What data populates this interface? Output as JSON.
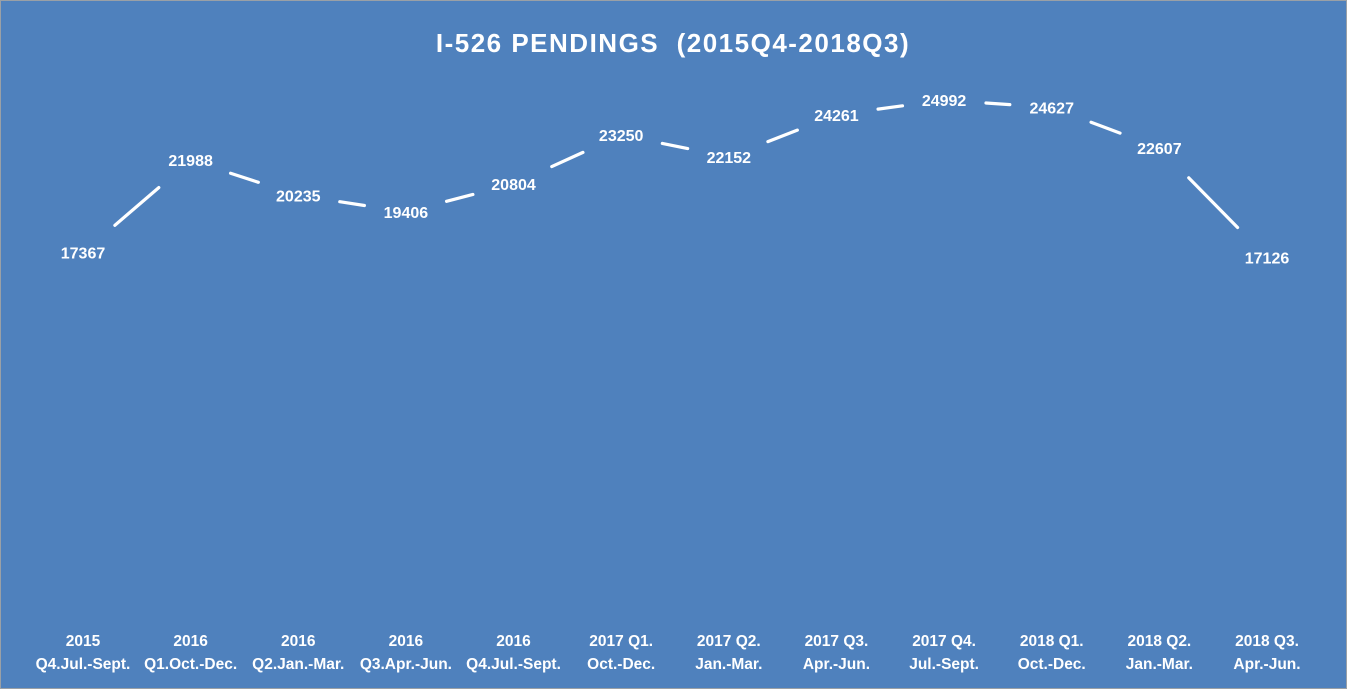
{
  "colors": {
    "background": "#4f81bd",
    "line": "#ffffff",
    "label": "#ffffff",
    "drop_line": "#ffffff"
  },
  "chart_data": {
    "type": "line",
    "title": "I-526 PENDINGS  (2015Q4-2018Q3)",
    "xlabel": "",
    "ylabel": "",
    "grid": false,
    "legend": "none",
    "ylim": [
      0,
      30000
    ],
    "categories": [
      [
        "2015",
        "Q4.Jul.-Sept."
      ],
      [
        "2016",
        "Q1.Oct.-Dec."
      ],
      [
        "2016",
        "Q2.Jan.-Mar."
      ],
      [
        "2016",
        "Q3.Apr.-Jun."
      ],
      [
        "2016",
        "Q4.Jul.-Sept."
      ],
      [
        "2017 Q1.",
        "Oct.-Dec."
      ],
      [
        "2017 Q2.",
        "Jan.-Mar."
      ],
      [
        "2017 Q3.",
        "Apr.-Jun."
      ],
      [
        "2017 Q4.",
        "Jul.-Sept."
      ],
      [
        "2018 Q1.",
        "Oct.-Dec."
      ],
      [
        "2018 Q2.",
        "Jan.-Mar."
      ],
      [
        "2018 Q3.",
        "Apr.-Jun."
      ]
    ],
    "series": [
      {
        "values": [
          17367,
          21988,
          20235,
          19406,
          20804,
          23250,
          22152,
          24261,
          24992,
          24627,
          22607,
          17126
        ]
      }
    ]
  }
}
